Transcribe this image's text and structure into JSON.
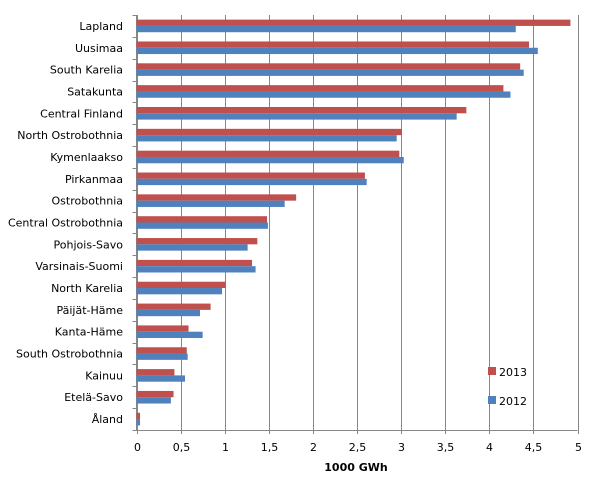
{
  "chart_data": {
    "type": "bar",
    "orientation": "horizontal",
    "xlabel": "1000 GWh",
    "ylabel": "",
    "title": "",
    "xlim": [
      0,
      5
    ],
    "xticks": [
      "0",
      "0,5",
      "1",
      "1,5",
      "2",
      "2,5",
      "3",
      "3,5",
      "4",
      "4,5",
      "5"
    ],
    "grid": "vertical",
    "legend_position": "bottom-right",
    "categories": [
      "Lapland",
      "Uusimaa",
      "South Karelia",
      "Satakunta",
      "Central Finland",
      "North Ostrobothnia",
      "Kymenlaakso",
      "Pirkanmaa",
      "Ostrobothnia",
      "Central Ostrobothnia",
      "Pohjois-Savo",
      "Varsinais-Suomi",
      "North Karelia",
      "Päijät-Häme",
      "Kanta-Häme",
      "South Ostrobothnia",
      "Kainuu",
      "Etelä-Savo",
      "Åland"
    ],
    "series": [
      {
        "name": "2013",
        "color": "#c0504d",
        "values": [
          4.92,
          4.45,
          4.35,
          4.16,
          3.74,
          3.01,
          2.98,
          2.59,
          1.81,
          1.48,
          1.37,
          1.31,
          1.01,
          0.84,
          0.59,
          0.57,
          0.43,
          0.42,
          0.04
        ]
      },
      {
        "name": "2012",
        "color": "#4f81bd",
        "values": [
          4.3,
          4.55,
          4.39,
          4.24,
          3.63,
          2.95,
          3.03,
          2.61,
          1.68,
          1.49,
          1.26,
          1.35,
          0.97,
          0.72,
          0.75,
          0.58,
          0.55,
          0.39,
          0.04
        ]
      }
    ]
  }
}
